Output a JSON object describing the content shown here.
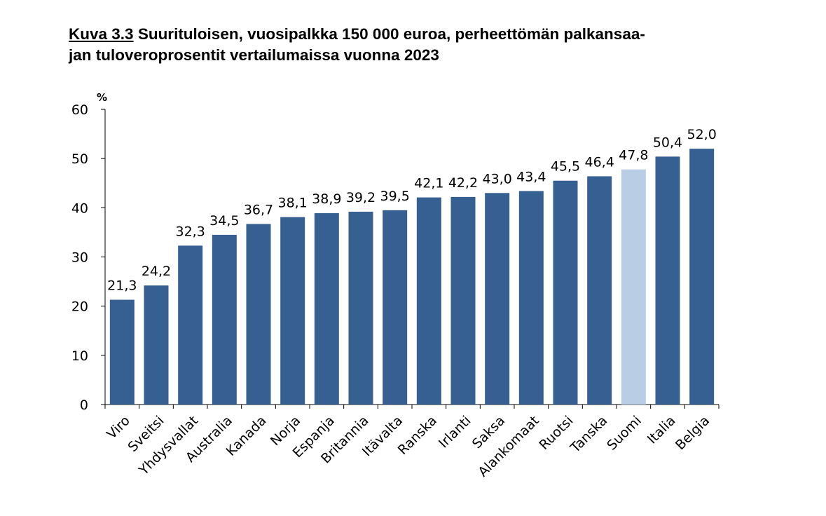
{
  "title": {
    "figure_number": "Kuva 3.3",
    "line1": " Suurituloisen, vuosipalkka 150 000 euroa, perheettömän palkansaa-",
    "line2": "jan tuloveroprosentit vertailumaissa vuonna 2023"
  },
  "chart_data": {
    "type": "bar",
    "title": "Suurituloisen, vuosipalkka 150 000 euroa, perheettömän palkansaajan tuloveroprosentit vertailumaissa vuonna 2023",
    "xlabel": "",
    "ylabel": "%",
    "ylim": [
      0,
      60
    ],
    "yticks": [
      0,
      10,
      20,
      30,
      40,
      50,
      60
    ],
    "grid": false,
    "legend": "none",
    "categories": [
      "Viro",
      "Sveitsi",
      "Yhdysvallat",
      "Australia",
      "Kanada",
      "Norja",
      "Espanja",
      "Britannia",
      "Itävalta",
      "Ranska",
      "Irlanti",
      "Saksa",
      "Alankomaat",
      "Ruotsi",
      "Tanska",
      "Suomi",
      "Italia",
      "Belgia"
    ],
    "values": [
      21.3,
      24.2,
      32.3,
      34.5,
      36.7,
      38.1,
      38.9,
      39.2,
      39.5,
      42.1,
      42.2,
      43.0,
      43.4,
      45.5,
      46.4,
      47.8,
      50.4,
      52.0
    ],
    "data_labels": [
      "21,3",
      "24,2",
      "32,3",
      "34,5",
      "36,7",
      "38,1",
      "38,9",
      "39,2",
      "39,5",
      "42,1",
      "42,2",
      "43,0",
      "43,4",
      "45,5",
      "46,4",
      "47,8",
      "50,4",
      "52,0"
    ],
    "colors": {
      "bar": "#376092",
      "highlight": "#B9CDE5",
      "axis": "#000000"
    },
    "highlight_category": "Suomi"
  }
}
